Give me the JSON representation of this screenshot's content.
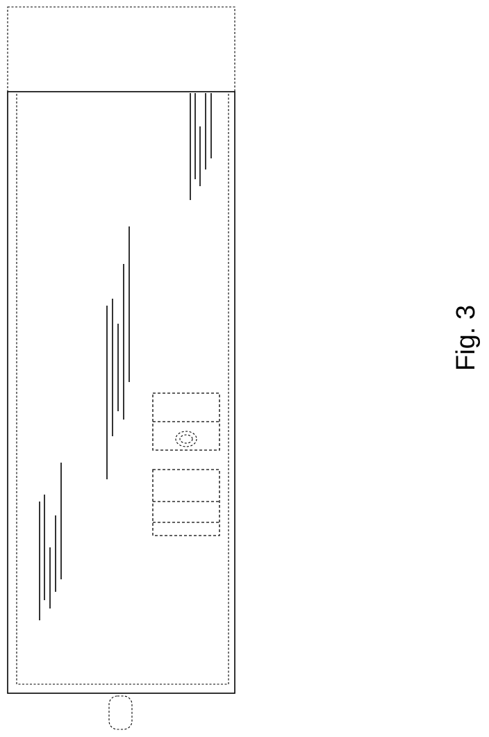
{
  "figure": {
    "caption": "Fig. 3"
  }
}
